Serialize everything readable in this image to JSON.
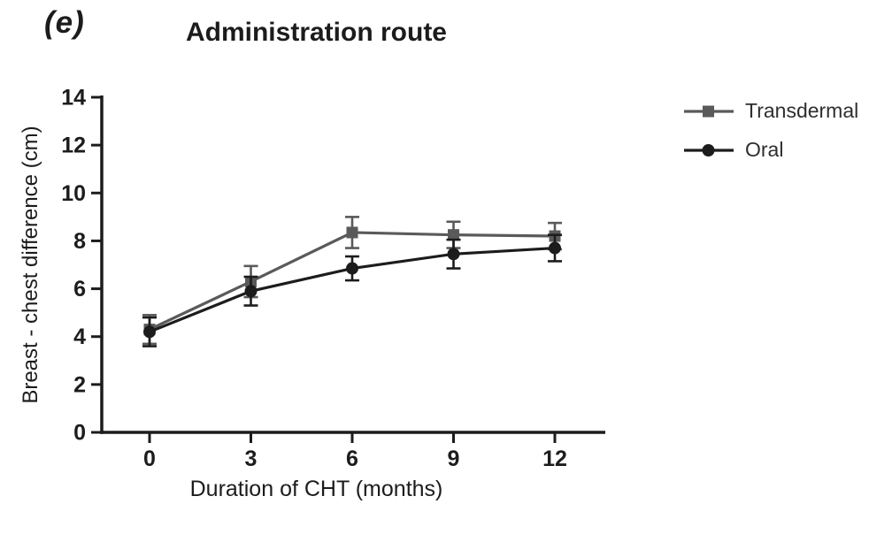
{
  "panel_label": "(e)",
  "title": "Administration route",
  "chart_data": {
    "type": "line",
    "x": [
      0,
      3,
      6,
      9,
      12
    ],
    "x_tick_labels": [
      "0",
      "3",
      "6",
      "9",
      "12"
    ],
    "y_ticks": [
      0,
      2,
      4,
      6,
      8,
      10,
      12,
      14
    ],
    "xlabel": "Duration of CHT (months)",
    "ylabel": "Breast - chest difference (cm)",
    "xlim": [
      0,
      12
    ],
    "ylim": [
      0,
      14
    ],
    "grid": false,
    "legend_position": "right",
    "series": [
      {
        "name": "Transdermal",
        "marker": "square",
        "color": "#5a5a5a",
        "values": [
          4.3,
          6.3,
          8.35,
          8.25,
          8.2
        ],
        "errors": [
          0.6,
          0.65,
          0.65,
          0.55,
          0.55
        ]
      },
      {
        "name": "Oral",
        "marker": "circle",
        "color": "#1c1c1c",
        "values": [
          4.2,
          5.9,
          6.85,
          7.45,
          7.7
        ],
        "errors": [
          0.6,
          0.6,
          0.5,
          0.6,
          0.55
        ]
      }
    ]
  },
  "colors": {
    "axis": "#1c1c1c",
    "tick_text": "#1c1c1c",
    "title_text": "#1c1c1c",
    "transdermal": "#5a5a5a",
    "oral": "#1c1c1c"
  }
}
